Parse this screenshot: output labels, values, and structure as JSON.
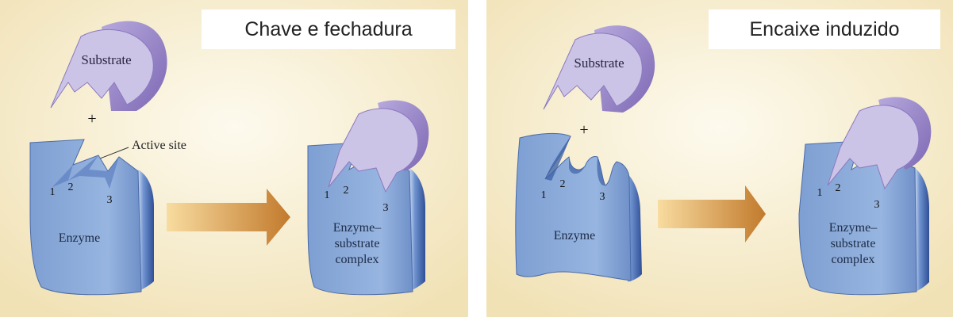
{
  "lock_and_key": {
    "title": "Chave e fechadura",
    "substrate_label": "Substrate",
    "plus": "+",
    "active_site_label": "Active site",
    "site_numbers": [
      "1",
      "2",
      "3"
    ],
    "enzyme_label": "Enzyme",
    "complex_label_lines": [
      "Enzyme–",
      "substrate",
      "complex"
    ]
  },
  "induced_fit": {
    "title": "Encaixe induzido",
    "substrate_label": "Substrate",
    "plus": "+",
    "site_numbers": [
      "1",
      "2",
      "3"
    ],
    "enzyme_label": "Enzyme",
    "complex_label_lines": [
      "Enzyme–",
      "substrate",
      "complex"
    ]
  },
  "colors": {
    "background_light": "#fdfaee",
    "background_warm": "#f1e2b6",
    "enzyme_blue": "#86a8d8",
    "enzyme_dark": "#3f63a8",
    "substrate_lavender": "#cbc4e6",
    "substrate_edge": "#8c79c0",
    "arrow_light": "#f8dca0",
    "arrow_dark": "#c27a2c"
  }
}
